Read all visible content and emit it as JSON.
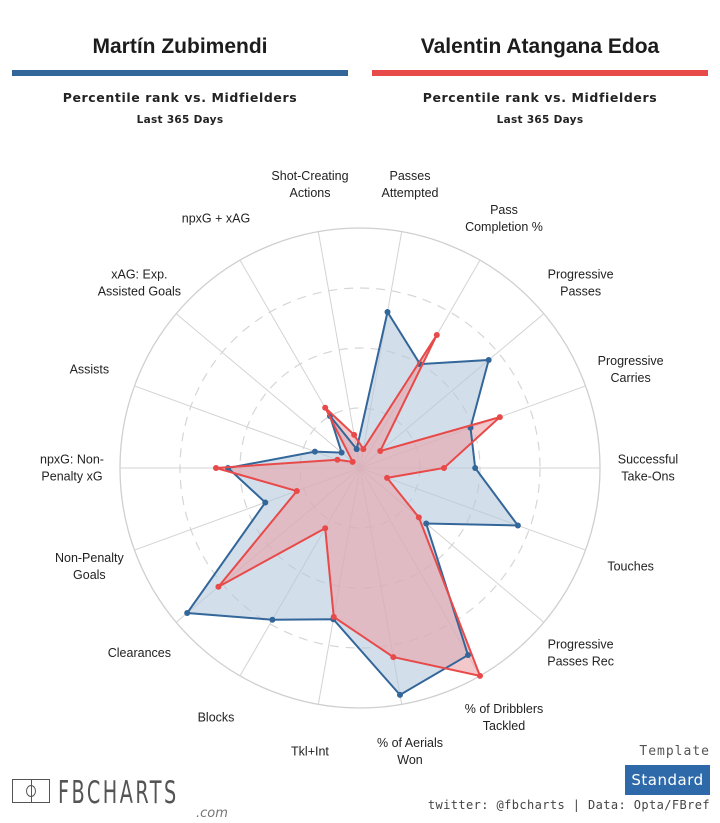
{
  "players": [
    {
      "name": "Martín Zubimendi",
      "color": "#336699",
      "subtitle": "Percentile rank vs. Midfielders",
      "period": "Last 365 Days"
    },
    {
      "name": "Valentin Atangana Edoa",
      "color": "#e84a4a",
      "subtitle": "Percentile rank vs. Midfielders",
      "period": "Last 365 Days"
    }
  ],
  "chart_data": {
    "type": "radar",
    "title": "Percentile rank vs. Midfielders",
    "rmax": 100,
    "rings": [
      25,
      50,
      75,
      100
    ],
    "categories": [
      [
        "Passes",
        "Attempted"
      ],
      [
        "Pass",
        "Completion %"
      ],
      [
        "Progressive",
        "Passes"
      ],
      [
        "Progressive",
        "Carries"
      ],
      [
        "Successful",
        "Take-Ons"
      ],
      [
        "Touches"
      ],
      [
        "Progressive",
        "Passes Rec"
      ],
      [
        "% of Dribblers",
        "Tackled"
      ],
      [
        "% of Aerials",
        "Won"
      ],
      [
        "Tkl+Int"
      ],
      [
        "Blocks"
      ],
      [
        "Clearances"
      ],
      [
        "Non-Penalty",
        "Goals"
      ],
      [
        "npxG: Non-",
        "Penalty xG"
      ],
      [
        "Assists"
      ],
      [
        "xAG: Exp.",
        "Assisted Goals"
      ],
      [
        "npxG + xAG"
      ],
      [
        "Shot-Creating",
        "Actions"
      ]
    ],
    "series": [
      {
        "name": "Martín Zubimendi",
        "color": "#336699",
        "fill": "#b6c8de",
        "values": [
          66,
          50,
          70,
          49,
          48,
          70,
          36,
          90,
          96,
          64,
          73,
          94,
          42,
          55,
          20,
          10,
          25,
          8
        ]
      },
      {
        "name": "Valentin Atangana Edoa",
        "color": "#e84a4a",
        "fill": "#e9a3a8",
        "values": [
          8,
          64,
          11,
          62,
          35,
          12,
          32,
          100,
          80,
          63,
          29,
          77,
          28,
          60,
          10,
          4,
          29,
          14
        ]
      }
    ]
  },
  "branding": {
    "logo": "FBCHARTS",
    "logo_suffix": ".com",
    "template_label": "Template",
    "template_value": "Standard",
    "credit": "twitter: @fbcharts | Data: Opta/FBref"
  }
}
